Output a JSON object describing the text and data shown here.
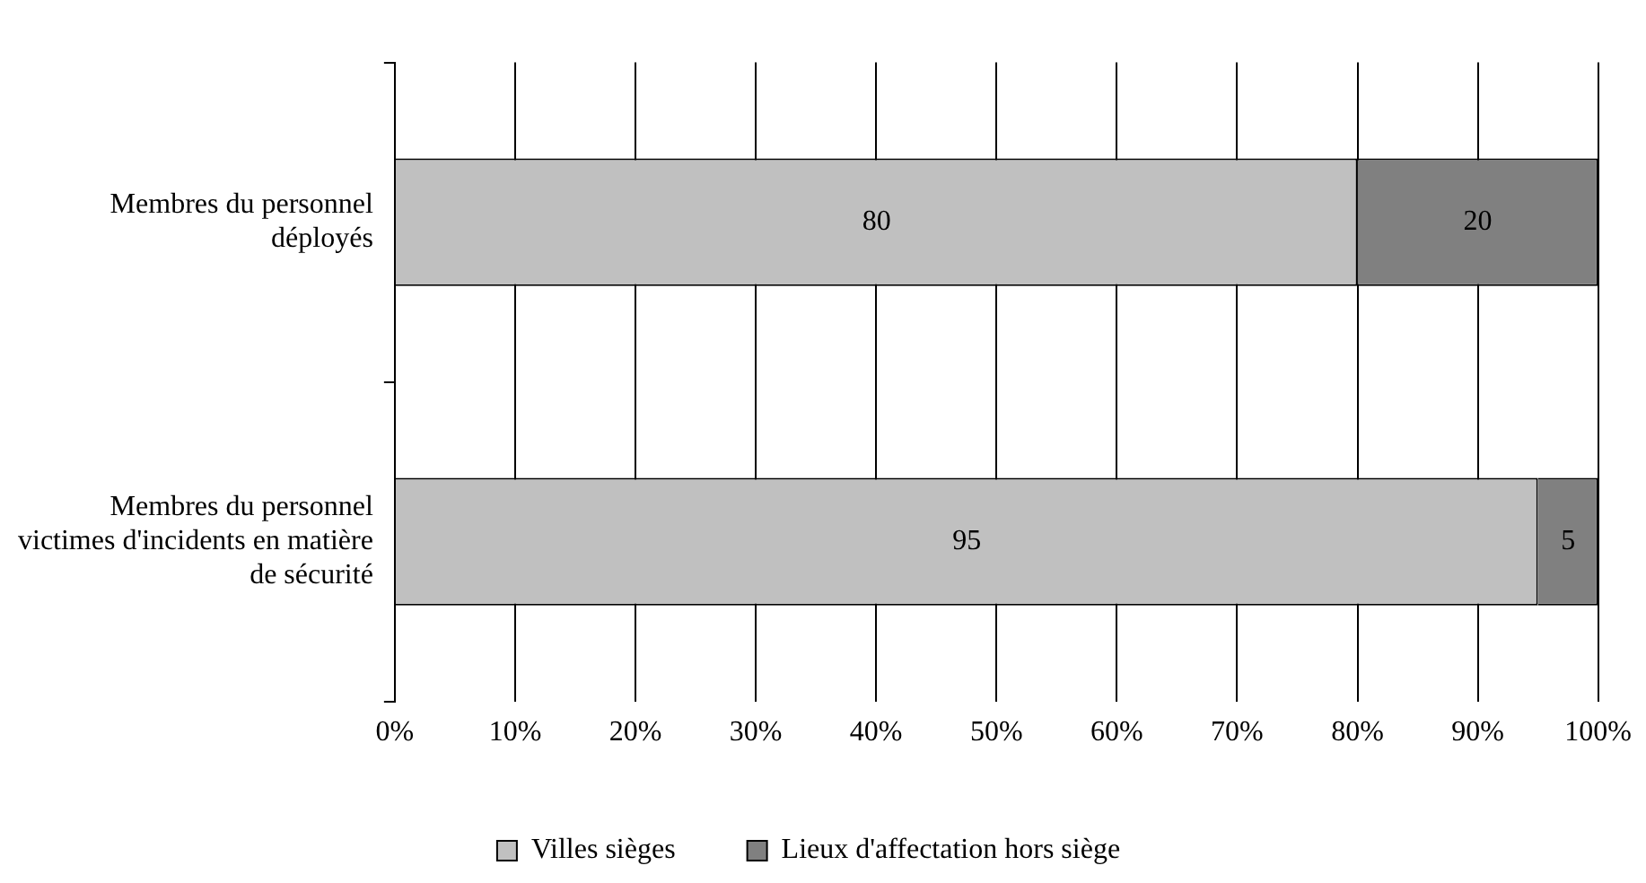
{
  "chart_data": {
    "type": "bar",
    "orientation": "horizontal",
    "stacked": true,
    "categories": [
      "Membres du personnel déployés",
      "Membres du personnel victimes d'incidents en matière de sécurité"
    ],
    "series": [
      {
        "name": "Villes sièges",
        "color": "#c0c0c0",
        "values": [
          80,
          95
        ]
      },
      {
        "name": "Lieux d'affectation hors siège",
        "color": "#808080",
        "values": [
          20,
          5
        ]
      }
    ],
    "xlim": [
      0,
      100
    ],
    "xticks": [
      {
        "value": 0,
        "label": "0%"
      },
      {
        "value": 10,
        "label": "10%"
      },
      {
        "value": 20,
        "label": "20%"
      },
      {
        "value": 30,
        "label": "30%"
      },
      {
        "value": 40,
        "label": "40%"
      },
      {
        "value": 50,
        "label": "50%"
      },
      {
        "value": 60,
        "label": "60%"
      },
      {
        "value": 70,
        "label": "70%"
      },
      {
        "value": 80,
        "label": "80%"
      },
      {
        "value": 90,
        "label": "90%"
      },
      {
        "value": 100,
        "label": "100%"
      }
    ],
    "grid": "x",
    "legend": "bottom",
    "data_labels": true
  }
}
